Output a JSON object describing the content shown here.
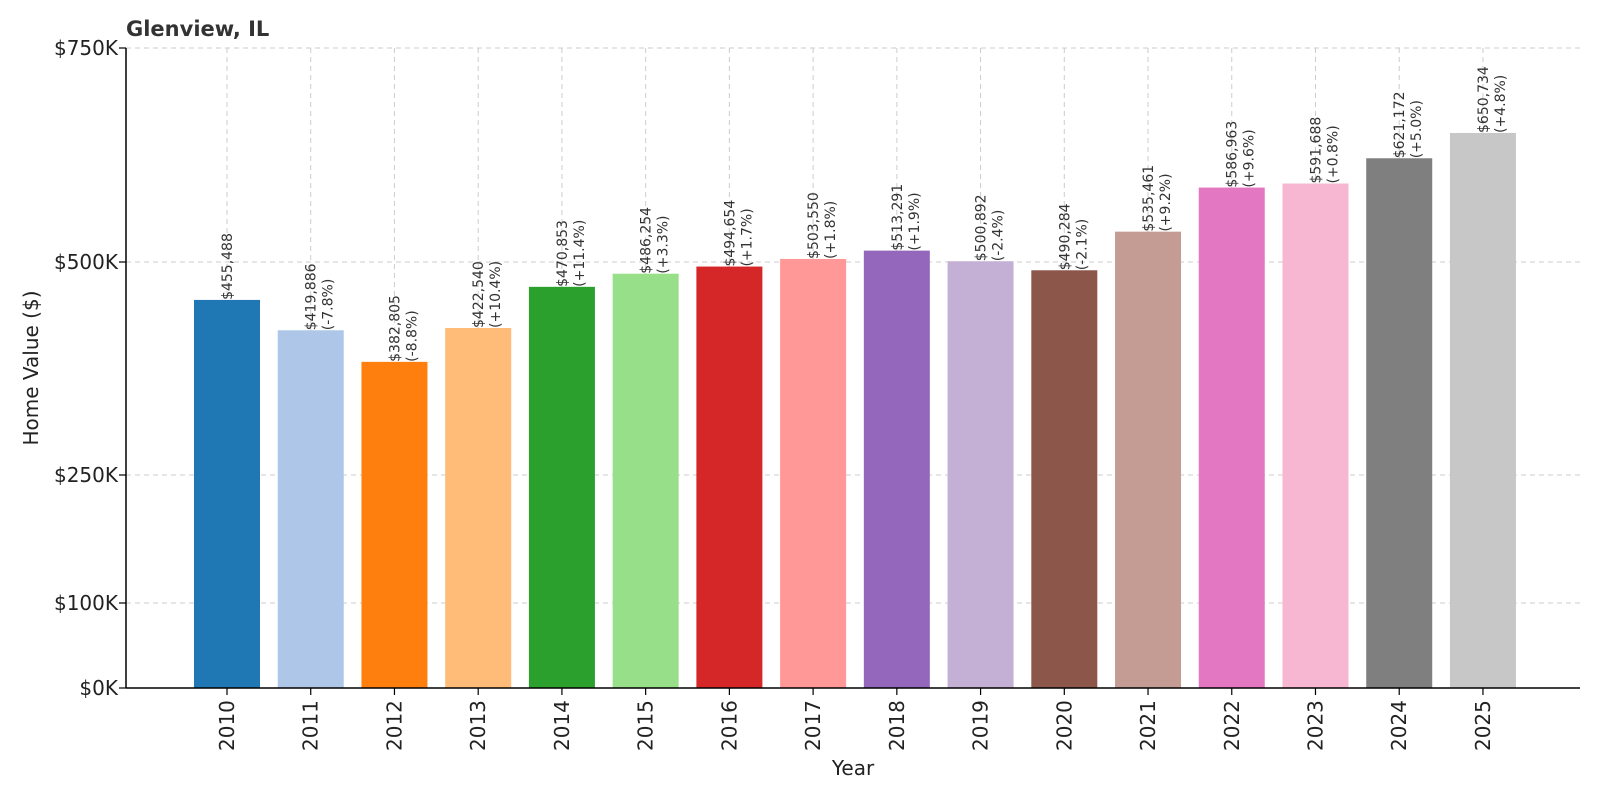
{
  "chart_data": {
    "type": "bar",
    "title": "Glenview, IL",
    "xlabel": "Year",
    "ylabel": "Home Value ($)",
    "ylim": [
      0,
      750000
    ],
    "yscale": "piecewise-linear (ticks 0–100K compressed)",
    "yticks": [
      {
        "value": 0,
        "label": "$0K"
      },
      {
        "value": 100000,
        "label": "$100K"
      },
      {
        "value": 250000,
        "label": "$250K"
      },
      {
        "value": 500000,
        "label": "$500K"
      },
      {
        "value": 750000,
        "label": "$750K"
      }
    ],
    "grid": true,
    "categories": [
      "2010",
      "2011",
      "2012",
      "2013",
      "2014",
      "2015",
      "2016",
      "2017",
      "2018",
      "2019",
      "2020",
      "2021",
      "2022",
      "2023",
      "2024",
      "2025"
    ],
    "values": [
      455488,
      419886,
      382805,
      422540,
      470853,
      486254,
      494654,
      503550,
      513291,
      500892,
      490284,
      535461,
      586963,
      591688,
      621172,
      650734
    ],
    "value_labels": [
      "$455,488",
      "$419,886",
      "$382,805",
      "$422,540",
      "$470,853",
      "$486,254",
      "$494,654",
      "$503,550",
      "$513,291",
      "$500,892",
      "$490,284",
      "$535,461",
      "$586,963",
      "$591,688",
      "$621,172",
      "$650,734"
    ],
    "change_labels": [
      "",
      "(-7.8%)",
      "(-8.8%)",
      "(+10.4%)",
      "(+11.4%)",
      "(+3.3%)",
      "(+1.7%)",
      "(+1.8%)",
      "(+1.9%)",
      "(-2.4%)",
      "(-2.1%)",
      "(+9.2%)",
      "(+9.6%)",
      "(+0.8%)",
      "(+5.0%)",
      "(+4.8%)"
    ],
    "colors": [
      "#1f77b4",
      "#aec7e8",
      "#ff7f0e",
      "#ffbb78",
      "#2ca02c",
      "#98df8a",
      "#d62728",
      "#ff9896",
      "#9467bd",
      "#c5b0d5",
      "#8c564b",
      "#c49c94",
      "#e377c2",
      "#f7b6d2",
      "#7f7f7f",
      "#c7c7c7"
    ]
  }
}
